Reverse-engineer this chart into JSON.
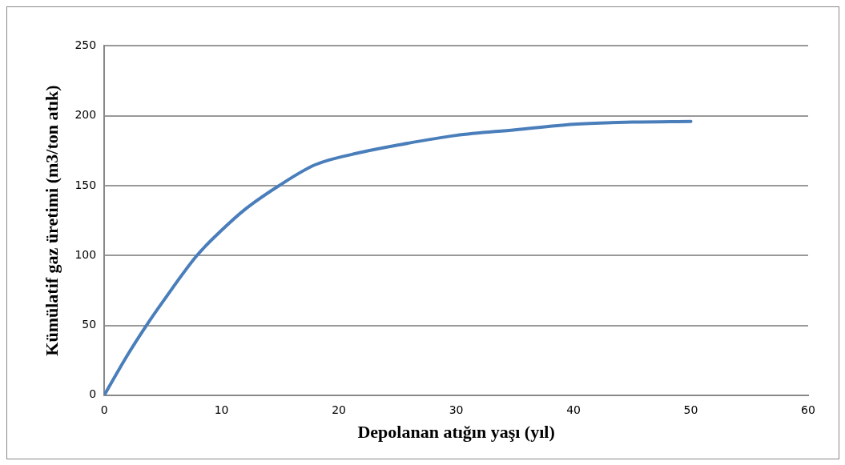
{
  "chart_data": {
    "type": "line",
    "xlabel": "Depolanan atığın yaşı (yıl)",
    "ylabel": "Kümülatif gaz üretimi (m3/ton atık)",
    "x": [
      0,
      2,
      3.6,
      5,
      7.9,
      10,
      12,
      14.9,
      18,
      22,
      25,
      30,
      35,
      40,
      45,
      50
    ],
    "series": [
      {
        "color": "#4a7ebb",
        "values": [
          0,
          29,
          50,
          67,
          100,
          118,
          133,
          150,
          165,
          174,
          179,
          186,
          190,
          194,
          195.5,
          196
        ]
      }
    ],
    "xlim": [
      0,
      60
    ],
    "xticks": [
      0,
      10,
      20,
      30,
      40,
      50,
      60
    ],
    "ylim": [
      0,
      250
    ],
    "yticks": [
      0,
      50,
      100,
      150,
      200,
      250
    ],
    "grid": "y",
    "legend": false,
    "marker": "none",
    "line_style": "solid"
  }
}
